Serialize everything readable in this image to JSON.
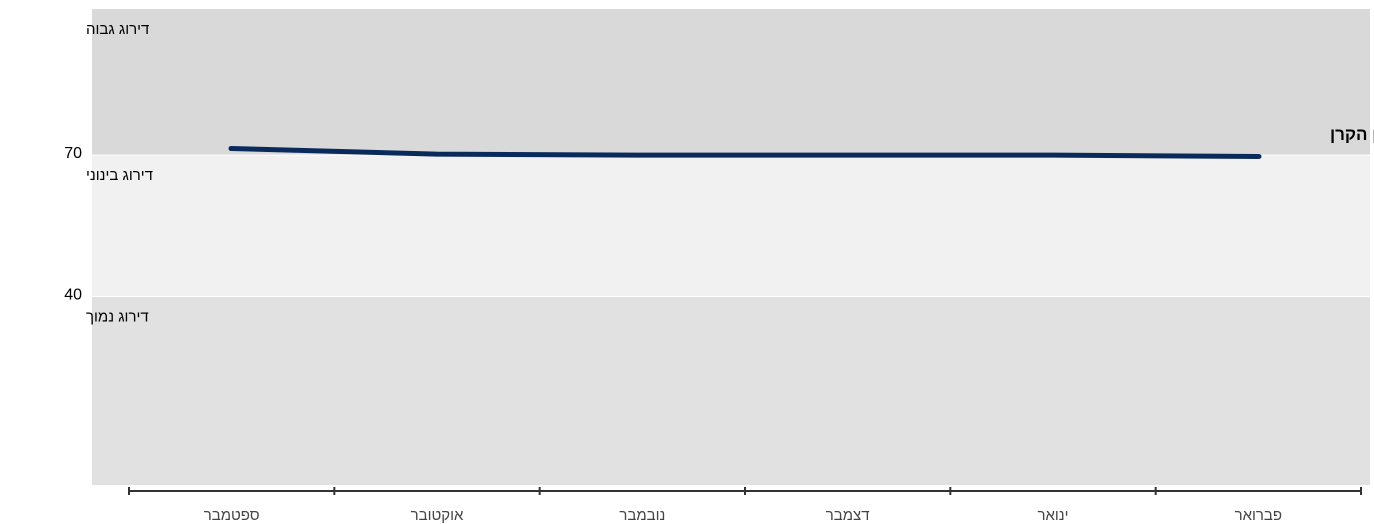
{
  "chart_data": {
    "type": "line",
    "categories": [
      "ספטמבר",
      "אוקטובר",
      "נובמבר",
      "דצמבר",
      "ינואר",
      "פברואר"
    ],
    "series": [
      {
        "name": "ציון הקרן",
        "values": [
          71.4,
          70.2,
          70.0,
          70.0,
          70.0,
          69.7
        ],
        "color": "#0b2a5c"
      }
    ],
    "ylim": [
      0,
      101
    ],
    "yticks": [
      {
        "value": 40,
        "label": "40"
      },
      {
        "value": 70,
        "label": "70"
      }
    ],
    "bands": [
      {
        "from": 70,
        "to": 101,
        "label": "דירוג גבוה",
        "color": "#d9d9d9"
      },
      {
        "from": 40,
        "to": 70,
        "label": "דירוג בינוני",
        "color": "#f1f1f1"
      },
      {
        "from": 0,
        "to": 40,
        "label": "דירוג נמוך",
        "color": "#e1e1e1"
      }
    ],
    "series_label": "ציון הקרן",
    "grid": false,
    "legend": "none"
  }
}
